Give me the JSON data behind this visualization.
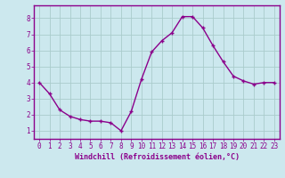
{
  "x": [
    0,
    1,
    2,
    3,
    4,
    5,
    6,
    7,
    8,
    9,
    10,
    11,
    12,
    13,
    14,
    15,
    16,
    17,
    18,
    19,
    20,
    21,
    22,
    23
  ],
  "y": [
    4.0,
    3.3,
    2.3,
    1.9,
    1.7,
    1.6,
    1.6,
    1.5,
    1.0,
    2.2,
    4.2,
    5.9,
    6.6,
    7.1,
    8.1,
    8.1,
    7.4,
    6.3,
    5.3,
    4.4,
    4.1,
    3.9,
    4.0,
    4.0
  ],
  "line_color": "#8b008b",
  "marker": "+",
  "marker_size": 3,
  "bg_color": "#cce8ee",
  "grid_color": "#aacccc",
  "xlabel": "Windchill (Refroidissement éolien,°C)",
  "xlabel_color": "#8b008b",
  "tick_color": "#8b008b",
  "border_color": "#8b008b",
  "xlim_min": -0.5,
  "xlim_max": 23.5,
  "ylim_min": 0.5,
  "ylim_max": 8.8,
  "yticks": [
    1,
    2,
    3,
    4,
    5,
    6,
    7,
    8
  ],
  "xticks": [
    0,
    1,
    2,
    3,
    4,
    5,
    6,
    7,
    8,
    9,
    10,
    11,
    12,
    13,
    14,
    15,
    16,
    17,
    18,
    19,
    20,
    21,
    22,
    23
  ],
  "linewidth": 1.0,
  "tick_fontsize": 5.5,
  "xlabel_fontsize": 6.0,
  "marker_edge_width": 1.0
}
